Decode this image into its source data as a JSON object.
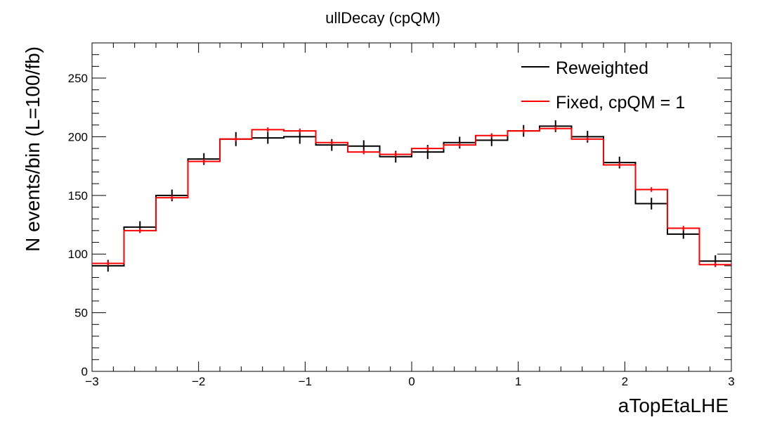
{
  "chart_data": {
    "type": "line",
    "title": "ullDecay (cpQM)",
    "xlabel": "aTopEtaLHE",
    "ylabel": "N events/bin (L=100/fb)",
    "xlim": [
      -3,
      3
    ],
    "ylim": [
      0,
      280
    ],
    "xticks": [
      -3,
      -2,
      -1,
      0,
      1,
      2,
      3
    ],
    "xtick_labels": [
      "−3",
      "−2",
      "−1",
      "0",
      "1",
      "2",
      "3"
    ],
    "yticks": [
      0,
      50,
      100,
      150,
      200,
      250
    ],
    "ytick_labels": [
      "0",
      "50",
      "100",
      "150",
      "200",
      "250"
    ],
    "bin_edges": [
      -3,
      -2.7,
      -2.4,
      -2.1,
      -1.8,
      -1.5,
      -1.2,
      -0.9,
      -0.6,
      -0.3,
      0,
      0.3,
      0.6,
      0.9,
      1.2,
      1.5,
      1.8,
      2.1,
      2.4,
      2.7,
      3
    ],
    "grid": false,
    "legend_position": "top-right",
    "series": [
      {
        "name": "Reweighted",
        "color": "#000000",
        "values": [
          90,
          123,
          150,
          181,
          198,
          199,
          200,
          193,
          192,
          183,
          187,
          195,
          197,
          205,
          209,
          200,
          178,
          143,
          117,
          94
        ],
        "errors": [
          5,
          5,
          5,
          5,
          6,
          5,
          6,
          5,
          5,
          5,
          6,
          5,
          5,
          5,
          5,
          5,
          5,
          5,
          4,
          5
        ]
      },
      {
        "name": "Fixed, cpQM = 1",
        "color": "#ff0000",
        "values": [
          92,
          120,
          148,
          179,
          198,
          206,
          205,
          195,
          187,
          185,
          190,
          193,
          201,
          205,
          207,
          198,
          176,
          155,
          122,
          91
        ],
        "errors": [
          2,
          2,
          2,
          2,
          2,
          2,
          2,
          2,
          2,
          2,
          2,
          2,
          2,
          2,
          2,
          2,
          2,
          2,
          2,
          2
        ]
      }
    ]
  }
}
